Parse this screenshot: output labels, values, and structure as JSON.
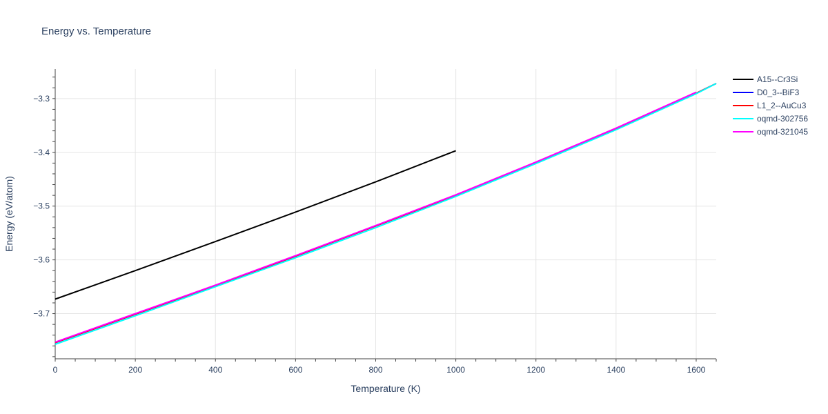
{
  "chart_data": {
    "type": "line",
    "title": "Energy vs. Temperature",
    "xlabel": "Temperature (K)",
    "ylabel": "Energy (eV/atom)",
    "xlim": [
      0,
      1650
    ],
    "ylim": [
      -3.784,
      -3.245
    ],
    "x_ticks": [
      0,
      200,
      400,
      600,
      800,
      1000,
      1200,
      1400,
      1600
    ],
    "y_ticks": [
      -3.7,
      -3.6,
      -3.5,
      -3.4,
      -3.3
    ],
    "x_tick_labels": [
      "0",
      "200",
      "400",
      "600",
      "800",
      "1000",
      "1200",
      "1400",
      "1600"
    ],
    "y_tick_labels": [
      "−3.7",
      "−3.6",
      "−3.5",
      "−3.4",
      "−3.3"
    ],
    "grid": true,
    "legend_position": "right",
    "series": [
      {
        "name": "A15--Cr3Si",
        "color": "#000000",
        "x": [
          0,
          200,
          400,
          600,
          800,
          1000
        ],
        "y": [
          -3.673,
          -3.62,
          -3.566,
          -3.511,
          -3.455,
          -3.397
        ]
      },
      {
        "name": "D0_3--BiF3",
        "color": "#0000ff",
        "x": [
          0,
          200,
          400,
          600,
          800,
          1000,
          1200,
          1400,
          1600,
          1650
        ],
        "y": [
          -3.754,
          -3.701,
          -3.648,
          -3.593,
          -3.537,
          -3.48,
          -3.419,
          -3.356,
          -3.29,
          -3.272
        ]
      },
      {
        "name": "L1_2--AuCu3",
        "color": "#ff0000",
        "x": [
          0,
          200,
          400,
          600,
          800,
          1000,
          1200,
          1400,
          1600,
          1650
        ],
        "y": [
          -3.754,
          -3.701,
          -3.648,
          -3.593,
          -3.537,
          -3.48,
          -3.419,
          -3.356,
          -3.29,
          -3.272
        ]
      },
      {
        "name": "oqmd-302756",
        "color": "#00ffff",
        "x": [
          0,
          200,
          400,
          600,
          800,
          1000,
          1200,
          1400,
          1600,
          1650
        ],
        "y": [
          -3.757,
          -3.704,
          -3.65,
          -3.596,
          -3.54,
          -3.482,
          -3.421,
          -3.358,
          -3.291,
          -3.272
        ]
      },
      {
        "name": "oqmd-321045",
        "color": "#ff00ff",
        "x": [
          0,
          200,
          400,
          600,
          800,
          1000,
          1200,
          1400,
          1600
        ],
        "y": [
          -3.753,
          -3.7,
          -3.647,
          -3.592,
          -3.536,
          -3.479,
          -3.418,
          -3.355,
          -3.288
        ]
      }
    ]
  }
}
